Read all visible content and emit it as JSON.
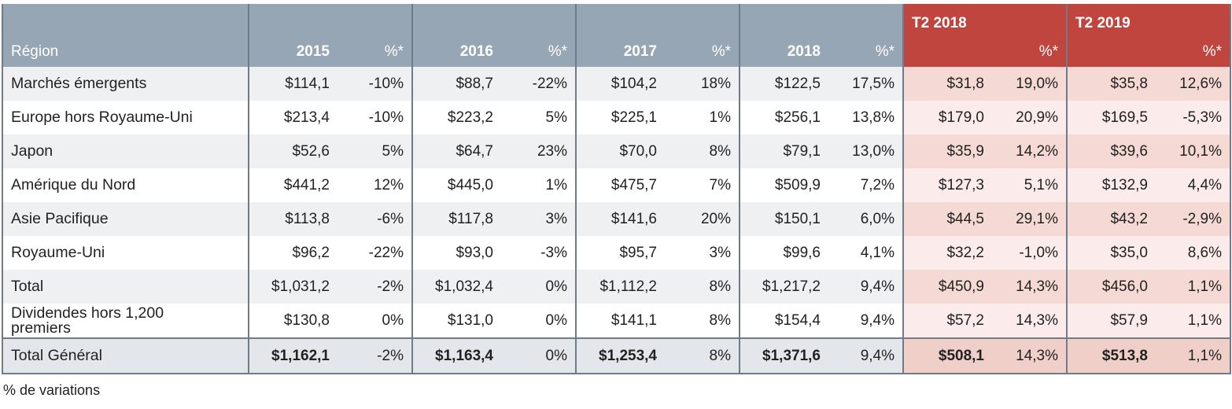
{
  "headers": {
    "region": "Région",
    "y2015": "2015",
    "y2016": "2016",
    "y2017": "2017",
    "y2018": "2018",
    "q2018": "T2 2018",
    "q2019": "T2 2019",
    "pct": "%*"
  },
  "rows": [
    {
      "region": "Marchés émergents",
      "v2015": "$114,1",
      "p2015": "-10%",
      "v2016": "$88,7",
      "p2016": "-22%",
      "v2017": "$104,2",
      "p2017": "18%",
      "v2018": "$122,5",
      "p2018": "17,5%",
      "vq2018": "$31,8",
      "pq2018": "19,0%",
      "vq2019": "$35,8",
      "pq2019": "12,6%"
    },
    {
      "region": "Europe hors Royaume-Uni",
      "v2015": "$213,4",
      "p2015": "-10%",
      "v2016": "$223,2",
      "p2016": "5%",
      "v2017": "$225,1",
      "p2017": "1%",
      "v2018": "$256,1",
      "p2018": "13,8%",
      "vq2018": "$179,0",
      "pq2018": "20,9%",
      "vq2019": "$169,5",
      "pq2019": "-5,3%"
    },
    {
      "region": "Japon",
      "v2015": "$52,6",
      "p2015": "5%",
      "v2016": "$64,7",
      "p2016": "23%",
      "v2017": "$70,0",
      "p2017": "8%",
      "v2018": "$79,1",
      "p2018": "13,0%",
      "vq2018": "$35,9",
      "pq2018": "14,2%",
      "vq2019": "$39,6",
      "pq2019": "10,1%"
    },
    {
      "region": "Amérique du Nord",
      "v2015": "$441,2",
      "p2015": "12%",
      "v2016": "$445,0",
      "p2016": "1%",
      "v2017": "$475,7",
      "p2017": "7%",
      "v2018": "$509,9",
      "p2018": "7,2%",
      "vq2018": "$127,3",
      "pq2018": "5,1%",
      "vq2019": "$132,9",
      "pq2019": "4,4%"
    },
    {
      "region": "Asie Pacifique",
      "v2015": "$113,8",
      "p2015": "-6%",
      "v2016": "$117,8",
      "p2016": "3%",
      "v2017": "$141,6",
      "p2017": "20%",
      "v2018": "$150,1",
      "p2018": "6,0%",
      "vq2018": "$44,5",
      "pq2018": "29,1%",
      "vq2019": "$43,2",
      "pq2019": "-2,9%"
    },
    {
      "region": "Royaume-Uni",
      "v2015": "$96,2",
      "p2015": "-22%",
      "v2016": "$93,0",
      "p2016": "-3%",
      "v2017": "$95,7",
      "p2017": "3%",
      "v2018": "$99,6",
      "p2018": "4,1%",
      "vq2018": "$32,2",
      "pq2018": "-1,0%",
      "vq2019": "$35,0",
      "pq2019": "8,6%"
    },
    {
      "region": "Total",
      "v2015": "$1,031,2",
      "p2015": "-2%",
      "v2016": "$1,032,4",
      "p2016": "0%",
      "v2017": "$1,112,2",
      "p2017": "8%",
      "v2018": "$1,217,2",
      "p2018": "9,4%",
      "vq2018": "$450,9",
      "pq2018": "14,3%",
      "vq2019": "$456,0",
      "pq2019": "1,1%"
    },
    {
      "region": "Dividendes hors 1,200 premiers",
      "v2015": "$130,8",
      "p2015": "0%",
      "v2016": "$131,0",
      "p2016": "0%",
      "v2017": "$141,1",
      "p2017": "8%",
      "v2018": "$154,4",
      "p2018": "9,4%",
      "vq2018": "$57,2",
      "pq2018": "14,3%",
      "vq2019": "$57,9",
      "pq2019": "1,1%"
    },
    {
      "region": "Total Général",
      "v2015": "$1,162,1",
      "p2015": "-2%",
      "v2016": "$1,163,4",
      "p2016": "0%",
      "v2017": "$1,253,4",
      "p2017": "8%",
      "v2018": "$1,371,6",
      "p2018": "9,4%",
      "vq2018": "$508,1",
      "pq2018": "14,3%",
      "vq2019": "$513,8",
      "pq2019": "1,1%"
    }
  ],
  "footnote": "% de variations",
  "colors": {
    "header_gray": "#97a6b4",
    "header_red": "#c0453f"
  }
}
